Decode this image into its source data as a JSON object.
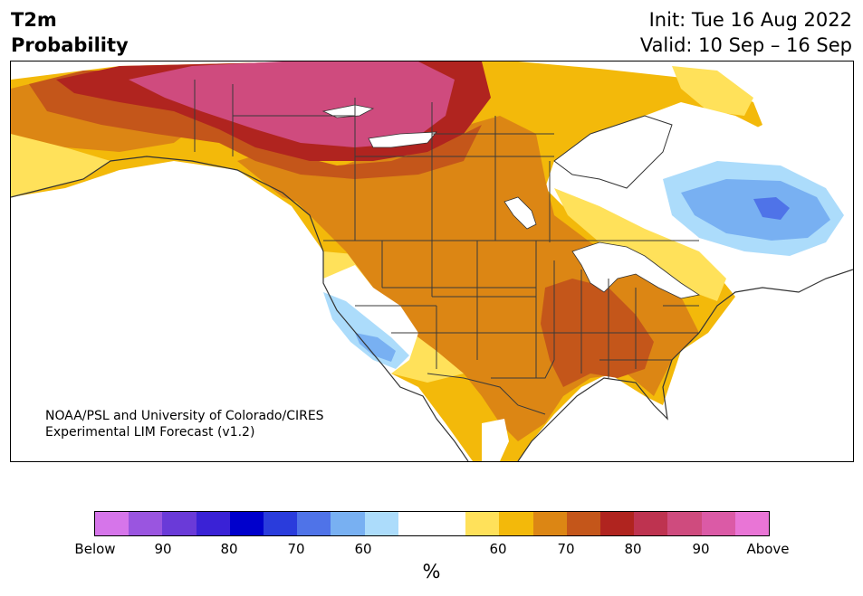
{
  "title": {
    "line1": "T2m",
    "line2": "Probability",
    "init": "Init: Tue 16 Aug 2022",
    "valid": "Valid: 10 Sep – 16 Sep"
  },
  "credit": {
    "line1": "NOAA/PSL and University of Colorado/CIRES",
    "line2": "Experimental LIM Forecast (v1.2)"
  },
  "colorbar": {
    "unit": "%",
    "tick_labels": [
      "Below",
      "90",
      "80",
      "70",
      "60",
      "60",
      "70",
      "80",
      "90",
      "Above"
    ],
    "colors_below": [
      "#d675ea",
      "#9a55e0",
      "#6a3ad8",
      "#3a22d6",
      "#0000cc",
      "#2a3cdc",
      "#4f73e8",
      "#78b0f2",
      "#acdcfb"
    ],
    "color_neutral": "#ffffff",
    "colors_above": [
      "#ffe15a",
      "#f3b90a",
      "#dc8614",
      "#c4561a",
      "#b0241f",
      "#be3350",
      "#cf4b7e",
      "#db5aa6",
      "#e975d6"
    ]
  },
  "map": {
    "region": "North America",
    "colors": {
      "above_90": "#cf4b7e",
      "above_80": "#b0241f",
      "above_75": "#c4561a",
      "above_70": "#dc8614",
      "above_60": "#f3b90a",
      "above_55": "#ffe15a",
      "below_55": "#acdcfb",
      "below_60": "#78b0f2",
      "below_70": "#4f73e8",
      "outline": "#333333"
    }
  }
}
